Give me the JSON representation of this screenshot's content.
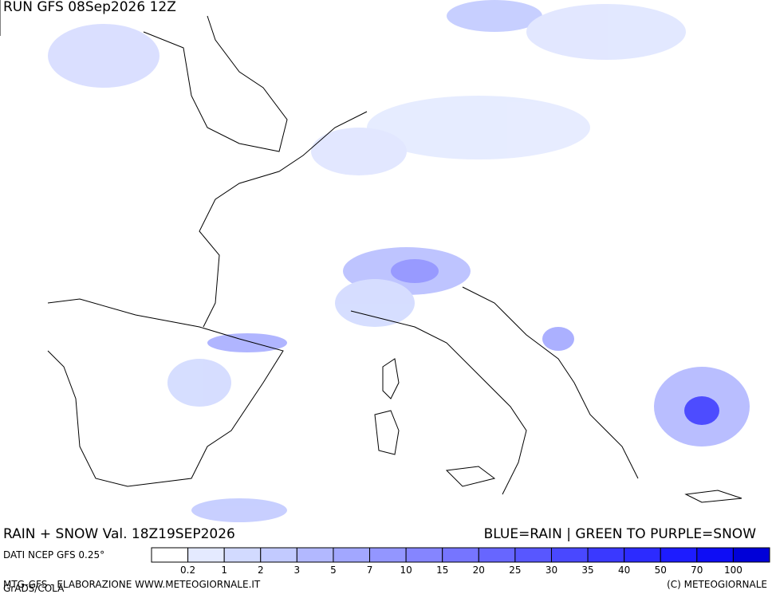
{
  "header": {
    "run": "RUN GFS 08Sep2026 12Z"
  },
  "footer": {
    "title": "RAIN + SNOW Val. 18Z19SEP2026",
    "key": "BLUE=RAIN | GREEN TO PURPLE=SNOW",
    "source": "DATI NCEP GFS 0.25°",
    "credit": "MTG-GFS - ELABORAZIONE WWW.METEOGIORNALE.IT",
    "grads": "GrADS/COLA",
    "copyright": "(C) METEOGIORNALE"
  },
  "legend": {
    "colors": [
      "#ffffff",
      "#e4eaff",
      "#d2daff",
      "#c2caff",
      "#b2b8ff",
      "#a2a7ff",
      "#9396ff",
      "#8585ff",
      "#7675ff",
      "#6766ff",
      "#5857ff",
      "#4948ff",
      "#3a39ff",
      "#2c2bff",
      "#1d1cff",
      "#0e0df5",
      "#0000d8"
    ],
    "labels": [
      0.2,
      1,
      2,
      3,
      5,
      7,
      10,
      15,
      20,
      25,
      30,
      35,
      40,
      50,
      70,
      100
    ]
  }
}
